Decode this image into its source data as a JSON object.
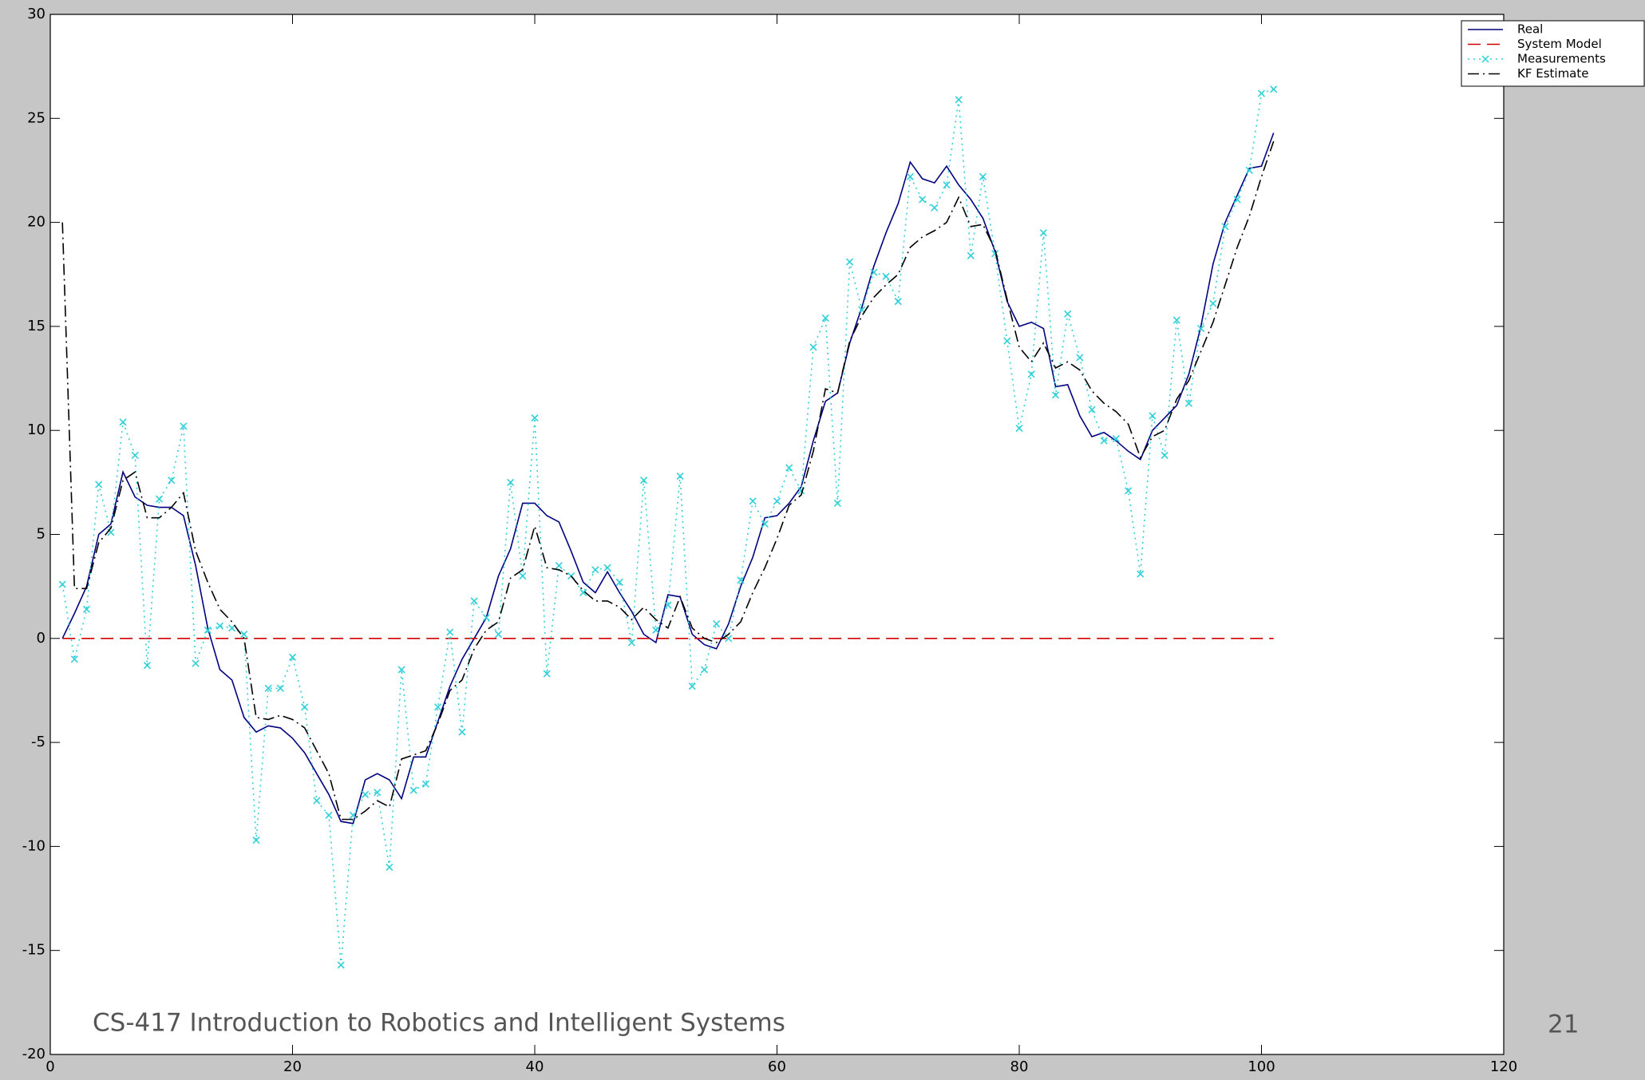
{
  "chart_data": {
    "type": "line",
    "x": [
      1,
      2,
      3,
      4,
      5,
      6,
      7,
      8,
      9,
      10,
      11,
      12,
      13,
      14,
      15,
      16,
      17,
      18,
      19,
      20,
      21,
      22,
      23,
      24,
      25,
      26,
      27,
      28,
      29,
      30,
      31,
      32,
      33,
      34,
      35,
      36,
      37,
      38,
      39,
      40,
      41,
      42,
      43,
      44,
      45,
      46,
      47,
      48,
      49,
      50,
      51,
      52,
      53,
      54,
      55,
      56,
      57,
      58,
      59,
      60,
      61,
      62,
      63,
      64,
      65,
      66,
      67,
      68,
      69,
      70,
      71,
      72,
      73,
      74,
      75,
      76,
      77,
      78,
      79,
      80,
      81,
      82,
      83,
      84,
      85,
      86,
      87,
      88,
      89,
      90,
      91,
      92,
      93,
      94,
      95,
      96,
      97,
      98,
      99,
      100,
      101
    ],
    "series": [
      {
        "name": "Real",
        "color": "#000080",
        "line_style": "solid",
        "values": [
          0,
          1.2,
          2.5,
          5,
          5.5,
          8,
          6.8,
          6.4,
          6.3,
          6.3,
          5.9,
          3.5,
          0.5,
          -1.5,
          -2,
          -3.8,
          -4.5,
          -4.2,
          -4.3,
          -4.8,
          -5.5,
          -6.5,
          -7.5,
          -8.8,
          -8.9,
          -6.8,
          -6.5,
          -6.8,
          -7.7,
          -5.7,
          -5.7,
          -4,
          -2.3,
          -1,
          0,
          1,
          3,
          4.3,
          6.5,
          6.5,
          5.9,
          5.6,
          4.2,
          2.7,
          2.2,
          3.2,
          2.2,
          1.3,
          0.2,
          -0.2,
          2.1,
          2,
          0.2,
          -0.3,
          -0.5,
          0.7,
          2.5,
          3.9,
          5.8,
          5.9,
          6.5,
          7.3,
          9.5,
          11.4,
          11.8,
          14.2,
          15.9,
          17.9,
          19.5,
          20.9,
          22.9,
          22.1,
          21.9,
          22.7,
          21.8,
          21.1,
          20.2,
          18.6,
          16.2,
          15,
          15.2,
          14.9,
          12.1,
          12.2,
          10.7,
          9.7,
          9.9,
          9.5,
          9,
          8.6,
          10,
          10.6,
          11.2,
          12.7,
          15,
          18,
          20,
          21.3,
          22.6,
          22.7,
          24.3
        ]
      },
      {
        "name": "System Model",
        "color": "#d00000",
        "line_style": "dashed",
        "values": [
          0,
          0,
          0,
          0,
          0,
          0,
          0,
          0,
          0,
          0,
          0,
          0,
          0,
          0,
          0,
          0,
          0,
          0,
          0,
          0,
          0,
          0,
          0,
          0,
          0,
          0,
          0,
          0,
          0,
          0,
          0,
          0,
          0,
          0,
          0,
          0,
          0,
          0,
          0,
          0,
          0,
          0,
          0,
          0,
          0,
          0,
          0,
          0,
          0,
          0,
          0,
          0,
          0,
          0,
          0,
          0,
          0,
          0,
          0,
          0,
          0,
          0,
          0,
          0,
          0,
          0,
          0,
          0,
          0,
          0,
          0,
          0,
          0,
          0,
          0,
          0,
          0,
          0,
          0,
          0,
          0,
          0,
          0,
          0,
          0,
          0,
          0,
          0,
          0,
          0,
          0,
          0,
          0,
          0,
          0,
          0,
          0,
          0,
          0,
          0,
          0
        ]
      },
      {
        "name": "Measurements",
        "color": "#30d0d8",
        "line_style": "dotted",
        "marker": "x",
        "values": [
          2.6,
          -1,
          1.4,
          7.4,
          5.1,
          10.4,
          8.8,
          -1.3,
          6.7,
          7.6,
          10.2,
          -1.2,
          0.4,
          0.6,
          0.5,
          0.2,
          -9.7,
          -2.4,
          -2.4,
          -0.9,
          -3.3,
          -7.8,
          -8.5,
          -15.7,
          -8.5,
          -7.5,
          -7.4,
          -11,
          -1.5,
          -7.3,
          -7,
          -3.3,
          0.3,
          -4.5,
          1.8,
          1,
          0.2,
          7.5,
          3,
          10.6,
          -1.7,
          3.5,
          3,
          2.2,
          3.3,
          3.4,
          2.7,
          -0.2,
          7.6,
          0.4,
          1.6,
          7.8,
          -2.3,
          -1.5,
          0.7,
          0,
          2.8,
          6.6,
          5.5,
          6.6,
          8.2,
          7.1,
          14,
          15.4,
          6.5,
          18.1,
          15.8,
          17.6,
          17.4,
          16.2,
          22.2,
          21.1,
          20.7,
          21.8,
          25.9,
          18.4,
          22.2,
          18.5,
          14.3,
          10.1,
          12.7,
          19.5,
          11.7,
          15.6,
          13.5,
          11,
          9.5,
          9.6,
          7.1,
          3.1,
          10.7,
          8.8,
          15.3,
          11.3,
          14.9,
          16.1,
          19.8,
          21.1,
          22.5,
          26.2,
          26.4
        ]
      },
      {
        "name": "KF Estimate",
        "color": "#000000",
        "line_style": "dashdot",
        "values": [
          20,
          2.4,
          2.4,
          4.6,
          5.3,
          7.6,
          8,
          5.8,
          5.8,
          6.3,
          7,
          4.2,
          2.7,
          1.4,
          0.8,
          0,
          -3.8,
          -3.9,
          -3.7,
          -3.9,
          -4.3,
          -5.4,
          -6.5,
          -8.7,
          -8.7,
          -8.3,
          -7.8,
          -8.1,
          -5.8,
          -5.6,
          -5.4,
          -4.1,
          -2.5,
          -2,
          -0.5,
          0.4,
          0.8,
          2.9,
          3.3,
          5.4,
          3.4,
          3.3,
          3,
          2.3,
          1.8,
          1.8,
          1.5,
          0.9,
          1.5,
          0.9,
          0.5,
          2,
          0.5,
          0,
          -0.2,
          0.2,
          0.8,
          2.2,
          3.4,
          4.8,
          6.4,
          6.9,
          9,
          12,
          11.8,
          14.3,
          15.5,
          16.4,
          17,
          17.5,
          18.8,
          19.3,
          19.6,
          20,
          21.2,
          19.8,
          19.9,
          18.7,
          16.3,
          14,
          13.3,
          14.2,
          13,
          13.3,
          12.9,
          11.9,
          11.3,
          10.9,
          10.3,
          8.7,
          9.7,
          10,
          11.5,
          12.4,
          13.8,
          15.2,
          17,
          18.8,
          20.3,
          22.2,
          23.9
        ]
      }
    ],
    "xlim": [
      0,
      120
    ],
    "xticks": [
      0,
      20,
      40,
      60,
      80,
      100,
      120
    ],
    "ylim": [
      -20,
      30
    ],
    "yticks": [
      -20,
      -15,
      -10,
      -5,
      0,
      5,
      10,
      15,
      20,
      25,
      30
    ],
    "grid": false,
    "legend": "top-right"
  },
  "slide": {
    "footer": "CS-417 Introduction to Robotics and Intelligent Systems",
    "page_number": 21
  }
}
